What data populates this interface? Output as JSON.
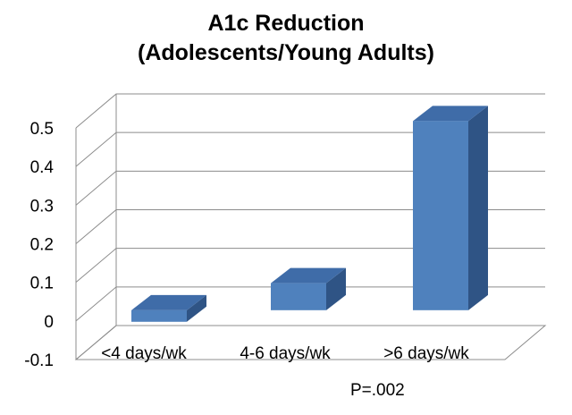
{
  "chart_data": {
    "type": "bar",
    "title_lines": [
      "A1c Reduction",
      "(Adolescents/Young Adults)"
    ],
    "categories": [
      "<4 days/wk",
      "4-6 days/wk",
      ">6 days/wk"
    ],
    "values": [
      -0.03,
      0.07,
      0.49
    ],
    "yticks": [
      "-0.1",
      "0",
      "0.1",
      "0.2",
      "0.3",
      "0.4",
      "0.5"
    ],
    "ylim": [
      -0.1,
      0.5
    ],
    "grid": true,
    "style": "3d-column",
    "bar_color": "#4f81bd",
    "bar_top_color": "#3f6ca8",
    "bar_side_color": "#2f5485",
    "legend": "none",
    "annotation": "P=.002"
  }
}
